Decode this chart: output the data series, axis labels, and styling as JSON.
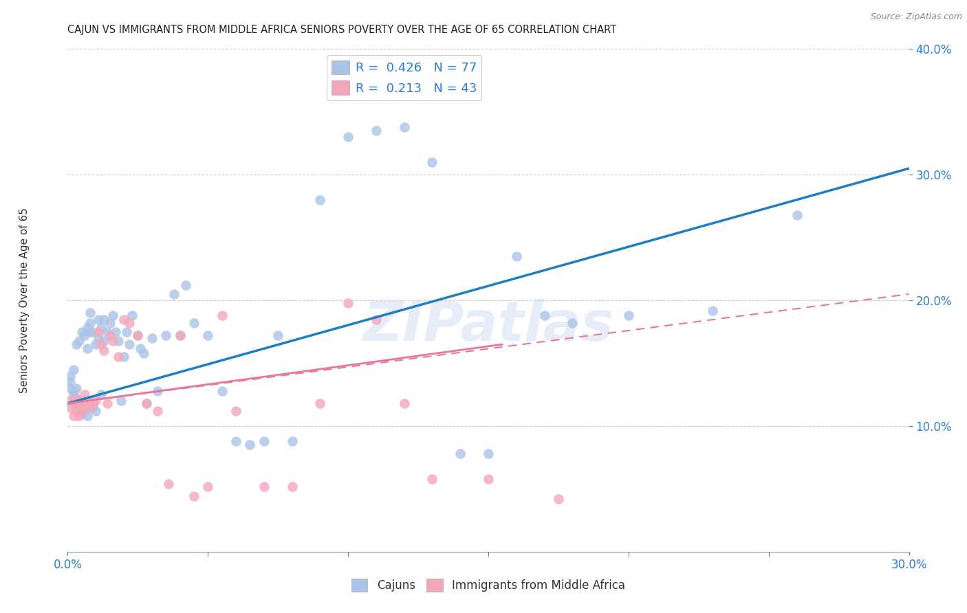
{
  "title": "CAJUN VS IMMIGRANTS FROM MIDDLE AFRICA SENIORS POVERTY OVER THE AGE OF 65 CORRELATION CHART",
  "source": "Source: ZipAtlas.com",
  "ylabel": "Seniors Poverty Over the Age of 65",
  "xlim": [
    0,
    0.3
  ],
  "ylim": [
    0,
    0.4
  ],
  "ytick_vals": [
    0.1,
    0.2,
    0.3,
    0.4
  ],
  "xtick_vals": [
    0.0,
    0.3
  ],
  "legend1_label": "Cajuns",
  "legend2_label": "Immigrants from Middle Africa",
  "r1": 0.426,
  "n1": 77,
  "r2": 0.213,
  "n2": 43,
  "color1": "#aac4e8",
  "color2": "#f4a7b9",
  "line1_color": "#1f7ec1",
  "line2_color": "#e8789a",
  "line2_dash_color": "#e8789a",
  "watermark": "ZIPatlas",
  "cajuns_x": [
    0.001,
    0.001,
    0.001,
    0.002,
    0.002,
    0.002,
    0.002,
    0.003,
    0.003,
    0.003,
    0.003,
    0.004,
    0.004,
    0.004,
    0.005,
    0.005,
    0.005,
    0.006,
    0.006,
    0.006,
    0.007,
    0.007,
    0.007,
    0.008,
    0.008,
    0.008,
    0.009,
    0.009,
    0.01,
    0.01,
    0.011,
    0.011,
    0.012,
    0.012,
    0.013,
    0.013,
    0.014,
    0.015,
    0.016,
    0.017,
    0.018,
    0.019,
    0.02,
    0.021,
    0.022,
    0.023,
    0.025,
    0.026,
    0.027,
    0.028,
    0.03,
    0.032,
    0.035,
    0.038,
    0.04,
    0.042,
    0.045,
    0.05,
    0.055,
    0.06,
    0.065,
    0.07,
    0.075,
    0.08,
    0.09,
    0.1,
    0.11,
    0.12,
    0.13,
    0.14,
    0.15,
    0.16,
    0.17,
    0.18,
    0.2,
    0.23,
    0.26
  ],
  "cajuns_y": [
    0.13,
    0.135,
    0.14,
    0.12,
    0.125,
    0.128,
    0.145,
    0.118,
    0.122,
    0.13,
    0.165,
    0.115,
    0.12,
    0.168,
    0.11,
    0.115,
    0.175,
    0.112,
    0.118,
    0.172,
    0.108,
    0.162,
    0.178,
    0.175,
    0.182,
    0.19,
    0.115,
    0.175,
    0.112,
    0.165,
    0.17,
    0.185,
    0.125,
    0.178,
    0.168,
    0.185,
    0.175,
    0.182,
    0.188,
    0.175,
    0.168,
    0.12,
    0.155,
    0.175,
    0.165,
    0.188,
    0.172,
    0.162,
    0.158,
    0.118,
    0.17,
    0.128,
    0.172,
    0.205,
    0.172,
    0.212,
    0.182,
    0.172,
    0.128,
    0.088,
    0.085,
    0.088,
    0.172,
    0.088,
    0.28,
    0.33,
    0.335,
    0.338,
    0.31,
    0.078,
    0.078,
    0.235,
    0.188,
    0.182,
    0.188,
    0.192,
    0.268
  ],
  "immigrants_x": [
    0.001,
    0.001,
    0.002,
    0.002,
    0.003,
    0.003,
    0.004,
    0.004,
    0.005,
    0.005,
    0.006,
    0.006,
    0.007,
    0.008,
    0.009,
    0.01,
    0.011,
    0.012,
    0.013,
    0.014,
    0.015,
    0.016,
    0.018,
    0.02,
    0.022,
    0.025,
    0.028,
    0.032,
    0.036,
    0.04,
    0.045,
    0.05,
    0.055,
    0.06,
    0.07,
    0.08,
    0.09,
    0.1,
    0.11,
    0.12,
    0.13,
    0.15,
    0.175
  ],
  "immigrants_y": [
    0.115,
    0.12,
    0.108,
    0.118,
    0.112,
    0.122,
    0.108,
    0.118,
    0.112,
    0.118,
    0.115,
    0.125,
    0.12,
    0.115,
    0.118,
    0.12,
    0.175,
    0.165,
    0.16,
    0.118,
    0.172,
    0.168,
    0.155,
    0.185,
    0.182,
    0.172,
    0.118,
    0.112,
    0.054,
    0.172,
    0.044,
    0.052,
    0.188,
    0.112,
    0.052,
    0.052,
    0.118,
    0.198,
    0.185,
    0.118,
    0.058,
    0.058,
    0.042
  ],
  "line1_x0": 0.0,
  "line1_y0": 0.118,
  "line1_x1": 0.3,
  "line1_y1": 0.305,
  "line2_solid_x0": 0.0,
  "line2_solid_y0": 0.118,
  "line2_solid_x1": 0.155,
  "line2_solid_y1": 0.165,
  "line2_dash_x0": 0.0,
  "line2_dash_y0": 0.118,
  "line2_dash_x1": 0.3,
  "line2_dash_y1": 0.205
}
